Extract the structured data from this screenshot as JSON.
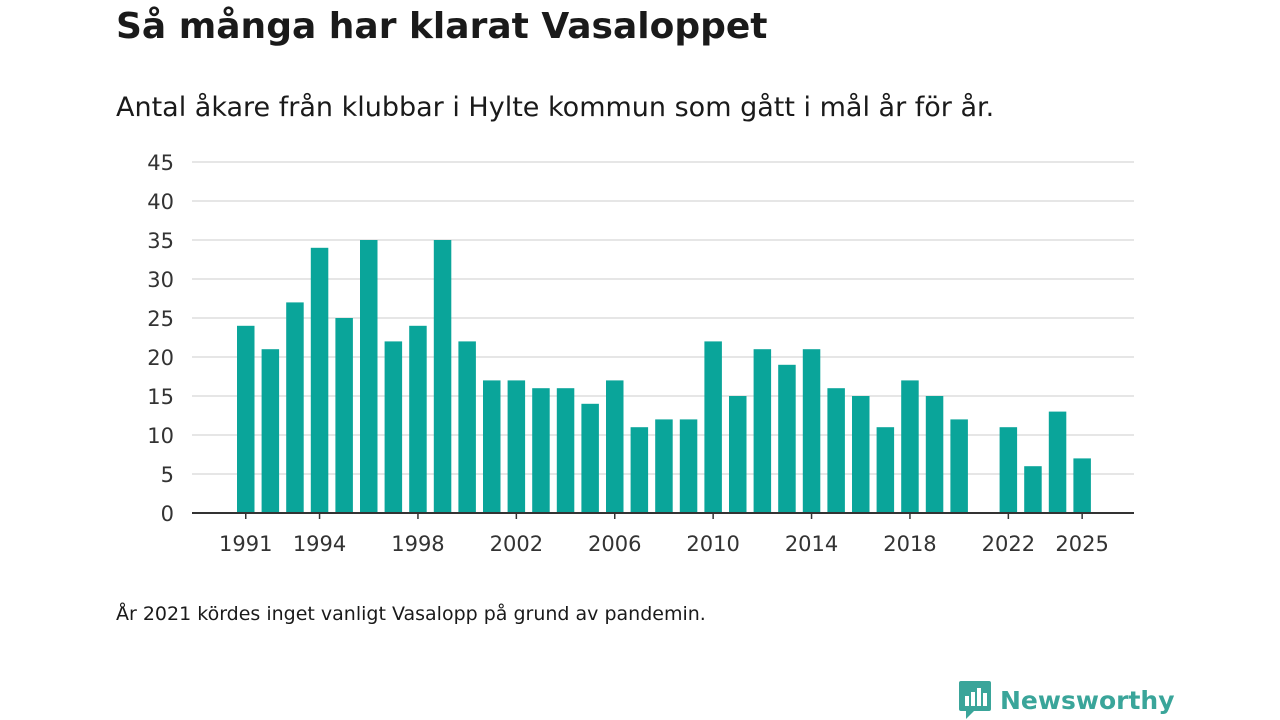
{
  "title": "Så många har klarat Vasaloppet",
  "subtitle": "Antal åkare från klubbar i Hylte kommun som gått i mål år för år.",
  "note": "År 2021 kördes inget vanligt Vasalopp på grund av pandemin.",
  "brand": {
    "name": "Newsworthy",
    "color": "#3aa59a"
  },
  "colors": {
    "bar": "#0aa59a",
    "grid": "#dddddd",
    "axis": "#333333"
  },
  "chart_data": {
    "type": "bar",
    "title": "Så många har klarat Vasaloppet",
    "xlabel": "",
    "ylabel": "",
    "ylim": [
      0,
      45
    ],
    "yticks": [
      0,
      5,
      10,
      15,
      20,
      25,
      30,
      35,
      40,
      45
    ],
    "xticks": [
      1991,
      1994,
      1998,
      2002,
      2006,
      2010,
      2014,
      2018,
      2022,
      2025
    ],
    "categories": [
      1991,
      1992,
      1993,
      1994,
      1995,
      1996,
      1997,
      1998,
      1999,
      2000,
      2001,
      2002,
      2003,
      2004,
      2005,
      2006,
      2007,
      2008,
      2009,
      2010,
      2011,
      2012,
      2013,
      2014,
      2015,
      2016,
      2017,
      2018,
      2019,
      2020,
      2021,
      2022,
      2023,
      2024,
      2025
    ],
    "values": [
      24,
      21,
      27,
      34,
      25,
      35,
      22,
      24,
      35,
      22,
      17,
      17,
      16,
      16,
      14,
      17,
      11,
      12,
      12,
      22,
      15,
      21,
      19,
      21,
      16,
      15,
      11,
      17,
      15,
      12,
      null,
      11,
      6,
      13,
      7
    ]
  }
}
